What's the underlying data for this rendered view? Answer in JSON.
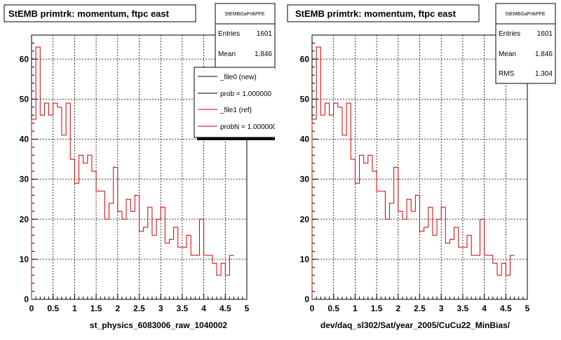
{
  "chart_data": [
    {
      "type": "histogram",
      "title": "StEMB primtrk: momentum, ftpc east",
      "xlabel": "st_physics_6083006_raw_1040002",
      "ylabel": "",
      "xlim": [
        0,
        5
      ],
      "ylim": [
        0,
        66
      ],
      "x_ticks": [
        "0",
        "0.5",
        "1",
        "1.5",
        "2",
        "2.5",
        "3",
        "3.5",
        "4",
        "4.5",
        "5"
      ],
      "y_ticks": [
        "0",
        "10",
        "20",
        "30",
        "40",
        "50",
        "60"
      ],
      "grid": true,
      "stats": {
        "name": "StEMBGaPrtkPFE",
        "rows": [
          {
            "label": "Entries",
            "value": "1601"
          },
          {
            "label": "Mean",
            "value": "1.846"
          }
        ]
      },
      "legend": {
        "placement": "top-right",
        "entries": [
          {
            "label": "_file0 (new)",
            "color": "#000000"
          },
          {
            "label": "prob = 1.000000",
            "color": "#000000"
          },
          {
            "label": "_file1 (ref)",
            "color": "#cc0000"
          },
          {
            "label": "probN = 1.000000",
            "color": "#cc0000"
          }
        ]
      },
      "bin_width": 0.1,
      "bin_start": 0,
      "series": [
        {
          "color": "#cc0000",
          "values": [
            45,
            63,
            46,
            49,
            46,
            49,
            48,
            41,
            49,
            35,
            29,
            36,
            34,
            36,
            32,
            27,
            27,
            20,
            24,
            33,
            22,
            20,
            25,
            22,
            26,
            17,
            18,
            23,
            16,
            20,
            23,
            14,
            15,
            18,
            13,
            13,
            16,
            11,
            11,
            20,
            11,
            11,
            9,
            6,
            9,
            6,
            11
          ]
        }
      ]
    },
    {
      "type": "histogram",
      "title": "StEMB primtrk: momentum, ftpc east",
      "xlabel": "dev/daq_sl302/Sat/year_2005/CuCu22_MinBias/",
      "ylabel": "",
      "xlim": [
        0,
        5
      ],
      "ylim": [
        0,
        66
      ],
      "x_ticks": [
        "0",
        "0.5",
        "1",
        "1.5",
        "2",
        "2.5",
        "3",
        "3.5",
        "4",
        "4.5",
        "5"
      ],
      "y_ticks": [
        "0",
        "10",
        "20",
        "30",
        "40",
        "50",
        "60"
      ],
      "grid": true,
      "stats": {
        "name": "StEMBGaPrtkPFE",
        "rows": [
          {
            "label": "Entries",
            "value": "1601"
          },
          {
            "label": "Mean",
            "value": "1.846"
          },
          {
            "label": "RMS",
            "value": "1.304"
          }
        ]
      },
      "bin_width": 0.1,
      "bin_start": 0,
      "series": [
        {
          "color": "#cc0000",
          "values": [
            45,
            63,
            46,
            49,
            46,
            49,
            48,
            41,
            49,
            35,
            29,
            36,
            34,
            36,
            32,
            27,
            27,
            20,
            24,
            33,
            22,
            20,
            25,
            22,
            26,
            17,
            18,
            23,
            16,
            20,
            23,
            14,
            15,
            18,
            13,
            13,
            16,
            11,
            11,
            20,
            11,
            11,
            9,
            6,
            9,
            6,
            11
          ]
        }
      ]
    }
  ]
}
